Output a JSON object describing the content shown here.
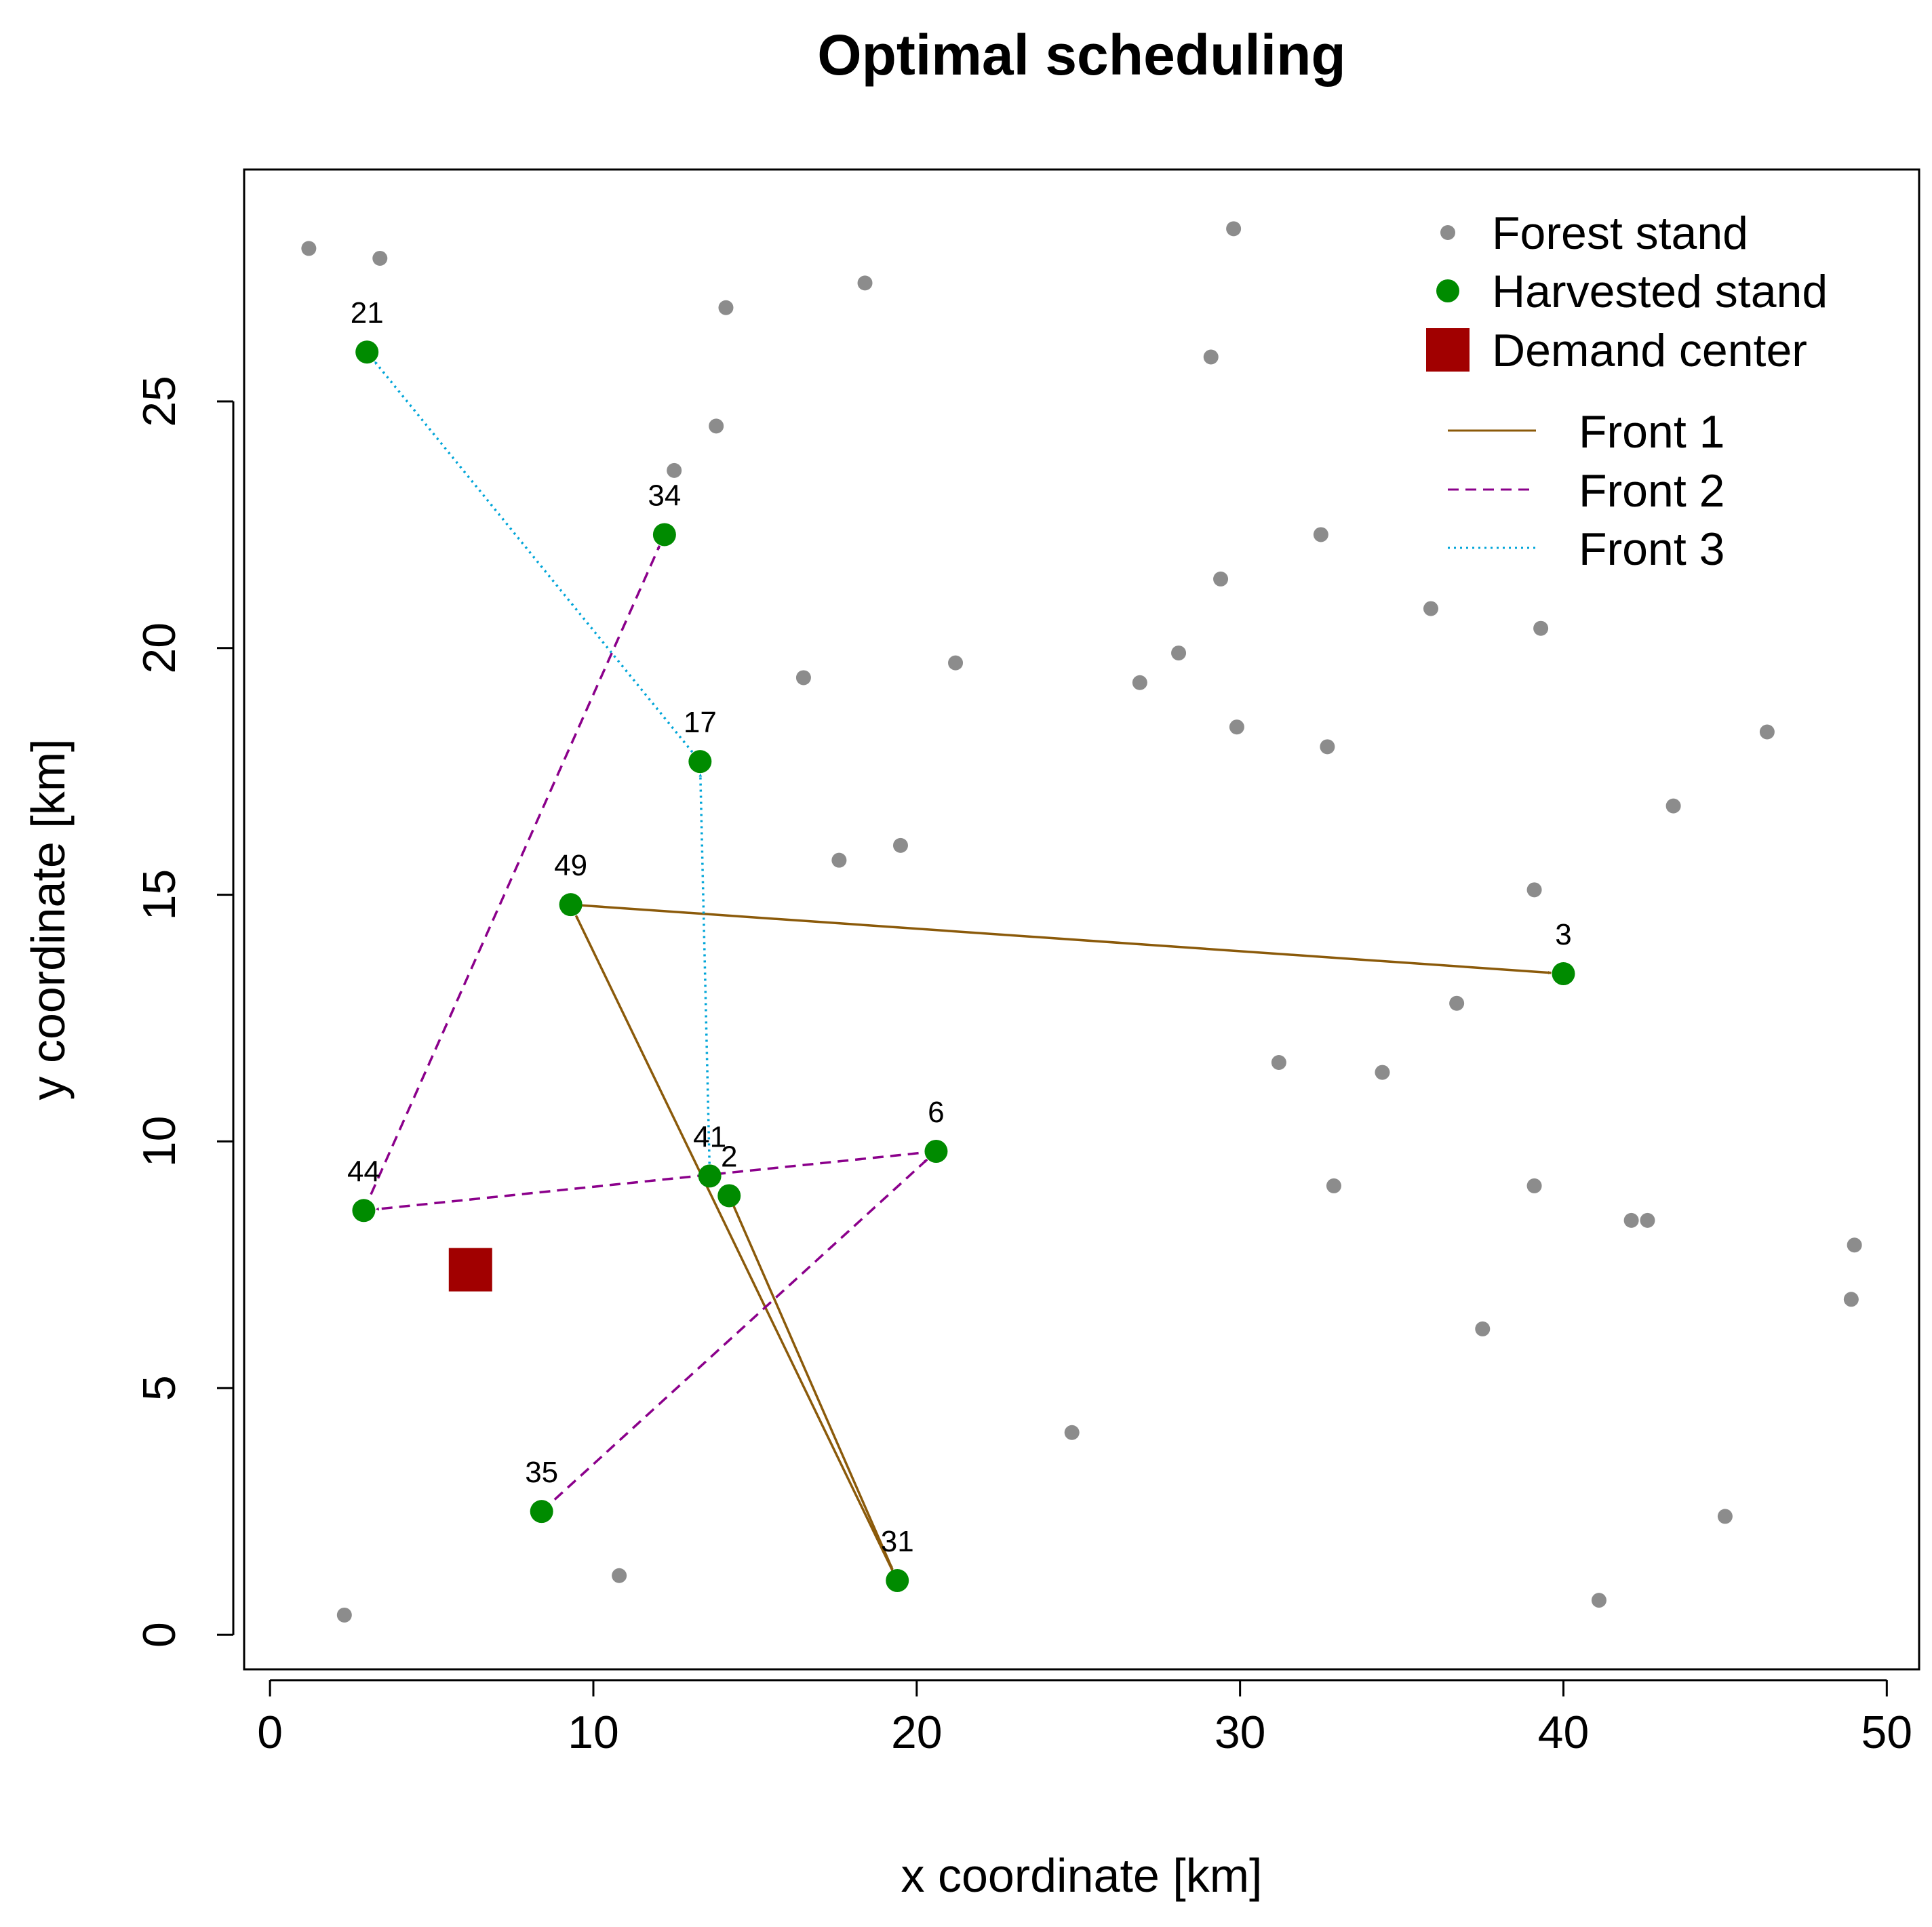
{
  "chart_data": {
    "type": "scatter",
    "title": "Optimal scheduling",
    "xlabel": "x coordinate [km]",
    "ylabel": "y coordinate [km]",
    "xlim": [
      -0.8,
      51
    ],
    "ylim": [
      -0.7,
      29.7
    ],
    "xticks": [
      0,
      10,
      20,
      30,
      40,
      50
    ],
    "yticks": [
      0,
      5,
      10,
      15,
      20,
      25
    ],
    "legend_position": "top-right",
    "legend": {
      "forest_stand": "Forest stand",
      "harvested_stand": "Harvested stand",
      "demand_center": "Demand center",
      "front1": "Front 1",
      "front2": "Front 2",
      "front3": "Front 3"
    },
    "colors": {
      "forest_stand": "#8c8c8c",
      "harvested_stand": "#008b00",
      "demand_center": "#a10000",
      "front1": "#8b5a0a",
      "front2": "#8b008b",
      "front3": "#00a5d8"
    },
    "forest_stands": [
      [
        1.2,
        28.1
      ],
      [
        3.4,
        27.9
      ],
      [
        14.1,
        26.9
      ],
      [
        18.4,
        27.4
      ],
      [
        29.8,
        28.5
      ],
      [
        29.1,
        25.9
      ],
      [
        13.8,
        24.5
      ],
      [
        12.5,
        23.6
      ],
      [
        32.5,
        22.3
      ],
      [
        29.4,
        21.4
      ],
      [
        35.9,
        20.8
      ],
      [
        39.3,
        20.4
      ],
      [
        28.1,
        19.9
      ],
      [
        21.2,
        19.7
      ],
      [
        16.5,
        19.4
      ],
      [
        26.9,
        19.3
      ],
      [
        29.9,
        18.4
      ],
      [
        32.7,
        18.0
      ],
      [
        46.3,
        18.3
      ],
      [
        43.4,
        16.8
      ],
      [
        19.5,
        16.0
      ],
      [
        17.6,
        15.7
      ],
      [
        39.1,
        15.1
      ],
      [
        36.7,
        12.8
      ],
      [
        31.2,
        11.6
      ],
      [
        34.4,
        11.4
      ],
      [
        32.9,
        9.1
      ],
      [
        39.1,
        9.1
      ],
      [
        42.1,
        8.4
      ],
      [
        42.6,
        8.4
      ],
      [
        49.0,
        7.9
      ],
      [
        48.9,
        6.8
      ],
      [
        37.5,
        6.2
      ],
      [
        24.8,
        4.1
      ],
      [
        45.0,
        2.4
      ],
      [
        10.8,
        1.2
      ],
      [
        41.1,
        0.7
      ],
      [
        2.3,
        0.4
      ]
    ],
    "harvested_stands": [
      {
        "id": "21",
        "x": 3.0,
        "y": 26.0
      },
      {
        "id": "34",
        "x": 12.2,
        "y": 22.3
      },
      {
        "id": "17",
        "x": 13.3,
        "y": 17.7
      },
      {
        "id": "49",
        "x": 9.3,
        "y": 14.8
      },
      {
        "id": "3",
        "x": 40.0,
        "y": 13.4
      },
      {
        "id": "6",
        "x": 20.6,
        "y": 9.8
      },
      {
        "id": "41",
        "x": 13.6,
        "y": 9.3
      },
      {
        "id": "2",
        "x": 14.2,
        "y": 8.9
      },
      {
        "id": "44",
        "x": 2.9,
        "y": 8.6
      },
      {
        "id": "35",
        "x": 8.4,
        "y": 2.5
      },
      {
        "id": "31",
        "x": 19.4,
        "y": 1.1
      }
    ],
    "demand_center": {
      "x": 6.2,
      "y": 7.4
    },
    "routes": [
      {
        "front": "front1",
        "from": [
          14.2,
          8.9
        ],
        "to": [
          19.4,
          1.1
        ]
      },
      {
        "front": "front1",
        "from": [
          19.4,
          1.1
        ],
        "to": [
          9.3,
          14.8
        ]
      },
      {
        "front": "front1",
        "from": [
          9.3,
          14.8
        ],
        "to": [
          40.0,
          13.4
        ]
      },
      {
        "front": "front2",
        "from": [
          8.4,
          2.5
        ],
        "to": [
          20.6,
          9.8
        ]
      },
      {
        "front": "front2",
        "from": [
          20.6,
          9.8
        ],
        "to": [
          2.9,
          8.6
        ]
      },
      {
        "front": "front2",
        "from": [
          2.9,
          8.6
        ],
        "to": [
          12.2,
          22.3
        ]
      },
      {
        "front": "front3",
        "from": [
          13.6,
          9.3
        ],
        "to": [
          13.3,
          17.7
        ]
      },
      {
        "front": "front3",
        "from": [
          13.3,
          17.7
        ],
        "to": [
          3.0,
          26.0
        ]
      }
    ]
  }
}
